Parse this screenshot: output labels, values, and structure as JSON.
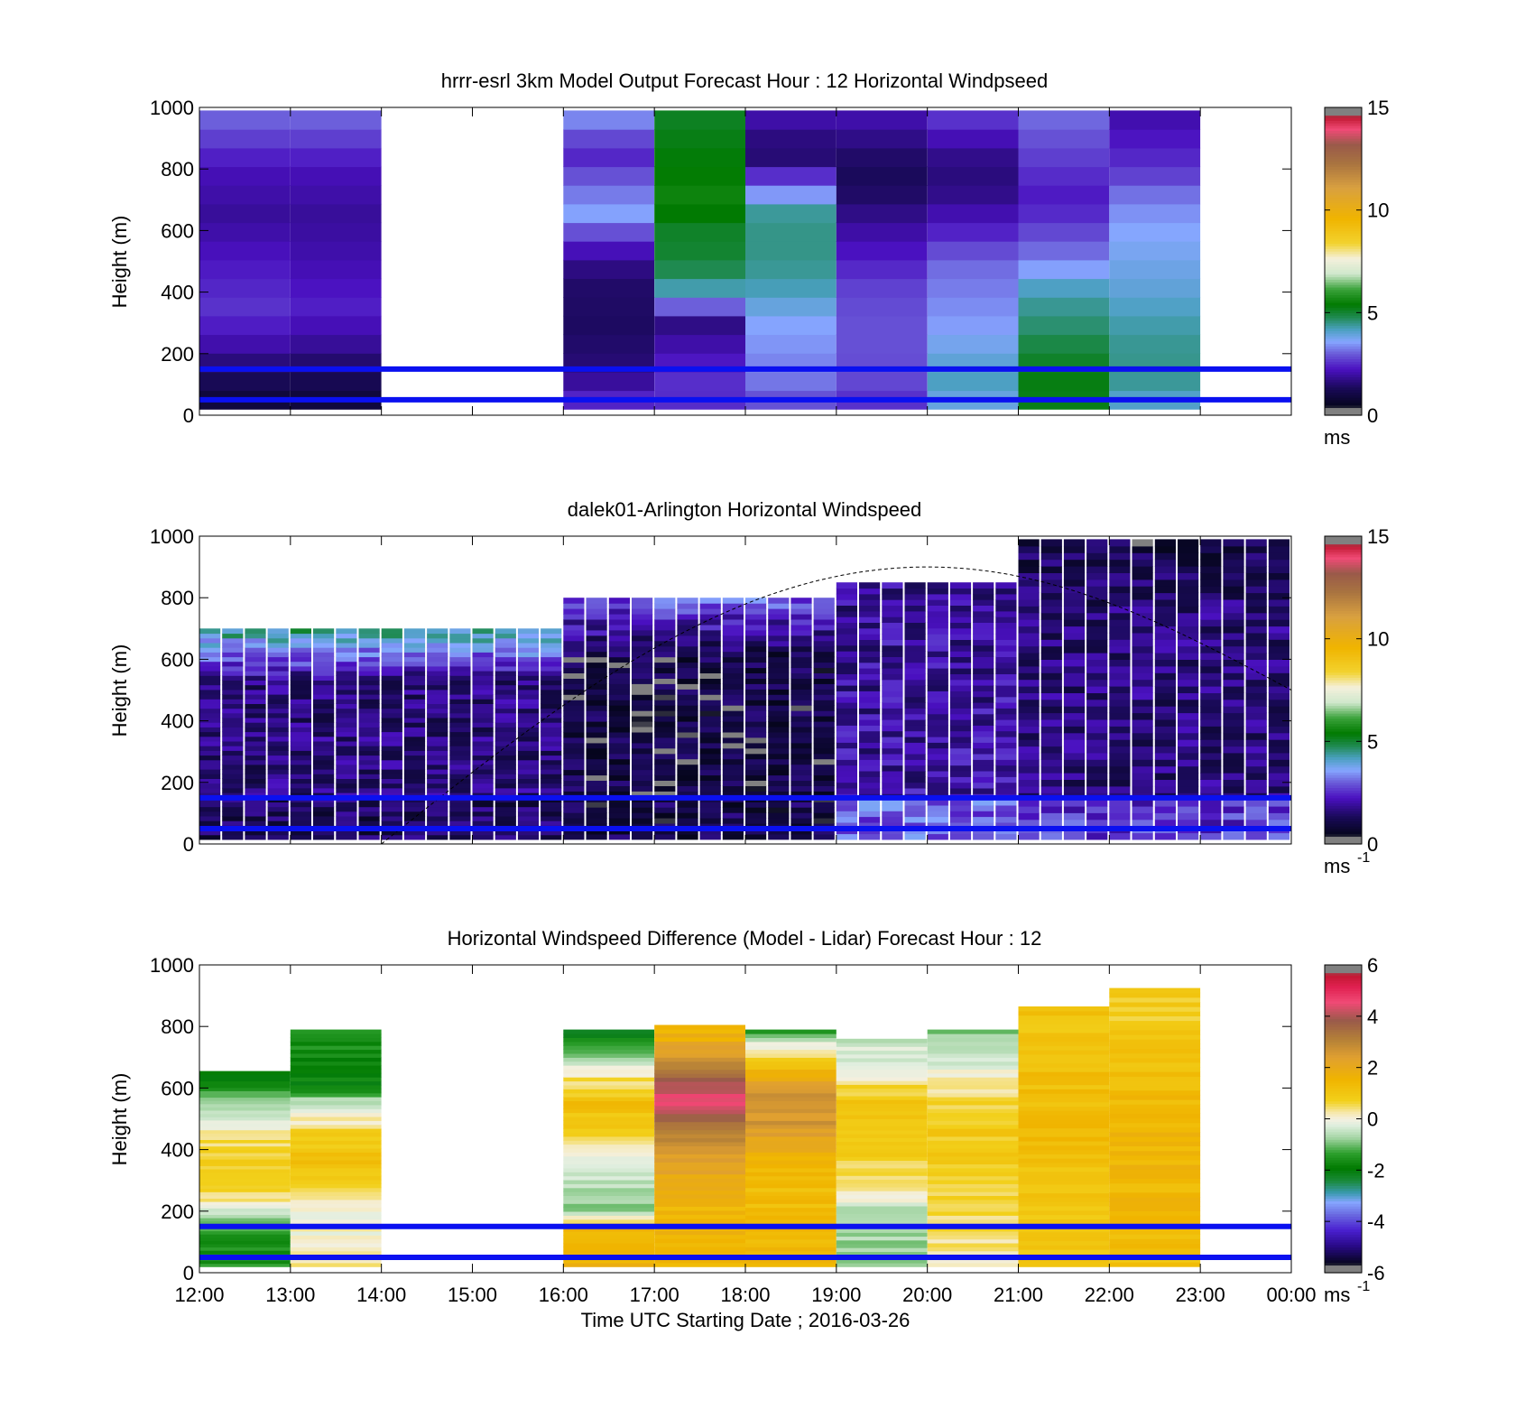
{
  "chart_data": [
    {
      "type": "heatmap",
      "title": "hrrr-esrl 3km Model Output   Forecast Hour : 12 Horizontal Windpseed",
      "ylabel": "Height (m)",
      "ylim": [
        0,
        1000
      ],
      "yticks": [
        0,
        200,
        400,
        600,
        800,
        1000
      ],
      "xlim": [
        "12:00",
        "00:00"
      ],
      "colorbar": {
        "range": [
          0,
          15
        ],
        "ticks": [
          0,
          5,
          10,
          15
        ],
        "unit_label": "ms",
        "unit_superscript": ""
      },
      "reference_lines_m": [
        50,
        150
      ],
      "columns": [
        {
          "start": "12:00",
          "end": "13:00",
          "top": 990,
          "profile": [
            [
              30,
              0.8
            ],
            [
              80,
              1.1
            ],
            [
              150,
              1.5
            ],
            [
              250,
              2.2
            ],
            [
              350,
              2.6
            ],
            [
              500,
              2.3
            ],
            [
              650,
              1.9
            ],
            [
              800,
              2.2
            ],
            [
              990,
              3.2
            ]
          ]
        },
        {
          "start": "13:00",
          "end": "14:00",
          "top": 990,
          "profile": [
            [
              30,
              0.8
            ],
            [
              80,
              1.1
            ],
            [
              150,
              1.4
            ],
            [
              250,
              2.0
            ],
            [
              350,
              2.4
            ],
            [
              500,
              2.1
            ],
            [
              650,
              1.9
            ],
            [
              800,
              2.2
            ],
            [
              990,
              3.2
            ]
          ]
        },
        {
          "start": "16:00",
          "end": "17:00",
          "top": 990,
          "profile": [
            [
              30,
              2.6
            ],
            [
              80,
              2.2
            ],
            [
              150,
              1.6
            ],
            [
              300,
              1.4
            ],
            [
              450,
              1.5
            ],
            [
              550,
              2.3
            ],
            [
              650,
              3.6
            ],
            [
              750,
              3.1
            ],
            [
              850,
              2.4
            ],
            [
              990,
              3.6
            ]
          ]
        },
        {
          "start": "17:00",
          "end": "18:00",
          "top": 990,
          "profile": [
            [
              30,
              2.5
            ],
            [
              100,
              2.6
            ],
            [
              200,
              2.2
            ],
            [
              300,
              1.7
            ],
            [
              400,
              4.2
            ],
            [
              500,
              5.0
            ],
            [
              600,
              5.1
            ],
            [
              700,
              5.6
            ],
            [
              800,
              5.4
            ],
            [
              990,
              5.1
            ]
          ]
        },
        {
          "start": "18:00",
          "end": "19:00",
          "top": 990,
          "profile": [
            [
              30,
              2.8
            ],
            [
              100,
              3.2
            ],
            [
              200,
              3.4
            ],
            [
              300,
              3.6
            ],
            [
              400,
              4.2
            ],
            [
              500,
              4.5
            ],
            [
              650,
              4.5
            ],
            [
              750,
              3.0
            ],
            [
              850,
              1.4
            ],
            [
              990,
              2.2
            ]
          ]
        },
        {
          "start": "19:00",
          "end": "20:00",
          "top": 990,
          "profile": [
            [
              30,
              2.5
            ],
            [
              100,
              2.8
            ],
            [
              200,
              2.9
            ],
            [
              300,
              2.9
            ],
            [
              400,
              2.8
            ],
            [
              500,
              2.4
            ],
            [
              600,
              2.0
            ],
            [
              750,
              1.3
            ],
            [
              850,
              1.5
            ],
            [
              990,
              2.2
            ]
          ]
        },
        {
          "start": "20:00",
          "end": "21:00",
          "top": 990,
          "profile": [
            [
              30,
              3.8
            ],
            [
              100,
              4.2
            ],
            [
              200,
              3.9
            ],
            [
              300,
              3.5
            ],
            [
              400,
              3.3
            ],
            [
              500,
              3.1
            ],
            [
              600,
              2.4
            ],
            [
              750,
              1.6
            ],
            [
              850,
              1.8
            ],
            [
              990,
              2.8
            ]
          ]
        },
        {
          "start": "21:00",
          "end": "22:00",
          "top": 990,
          "profile": [
            [
              30,
              5.2
            ],
            [
              100,
              5.3
            ],
            [
              200,
              5.0
            ],
            [
              300,
              4.6
            ],
            [
              400,
              4.3
            ],
            [
              500,
              3.3
            ],
            [
              600,
              2.8
            ],
            [
              700,
              2.3
            ],
            [
              800,
              2.6
            ],
            [
              990,
              3.2
            ]
          ]
        },
        {
          "start": "22:00",
          "end": "23:00",
          "top": 990,
          "profile": [
            [
              30,
              4.0
            ],
            [
              100,
              4.4
            ],
            [
              200,
              4.5
            ],
            [
              300,
              4.3
            ],
            [
              400,
              4.0
            ],
            [
              500,
              3.8
            ],
            [
              600,
              3.6
            ],
            [
              700,
              3.3
            ],
            [
              800,
              2.6
            ],
            [
              990,
              2.0
            ]
          ]
        }
      ]
    },
    {
      "type": "heatmap",
      "title": "dalek01-Arlington  Horizontal Windspeed",
      "ylabel": "Height (m)",
      "ylim": [
        0,
        1000
      ],
      "yticks": [
        0,
        200,
        400,
        600,
        800,
        1000
      ],
      "xlim": [
        "12:00",
        "00:00"
      ],
      "colorbar": {
        "range": [
          0,
          15
        ],
        "ticks": [
          0,
          5,
          10,
          15
        ],
        "unit_label": "ms",
        "unit_superscript": "-1"
      },
      "reference_lines_m": [
        50,
        150
      ],
      "dashed_curve": {
        "start": [
          "14:00",
          0
        ],
        "peak": [
          "20:00",
          900
        ],
        "end": [
          "00:00",
          500
        ]
      },
      "time_step_minutes": 15,
      "profile_regime": [
        {
          "from": "12:00",
          "to": "16:00",
          "low_m_s": 1.3,
          "mid_m_s": 1.6,
          "top_m_s": 4.5,
          "top_height_m": 700
        },
        {
          "from": "16:00",
          "to": "19:00",
          "low_m_s": 1.1,
          "mid_m_s": 1.0,
          "top_m_s": 3.0,
          "top_height_m": 800
        },
        {
          "from": "19:00",
          "to": "21:00",
          "low_m_s": 3.0,
          "mid_m_s": 2.0,
          "top_m_s": 1.8,
          "top_height_m": 850
        },
        {
          "from": "21:00",
          "to": "00:00",
          "low_m_s": 2.6,
          "mid_m_s": 1.6,
          "top_m_s": 1.0,
          "top_height_m": 990
        }
      ]
    },
    {
      "type": "heatmap",
      "title": "Horizontal Windspeed Difference (Model - Lidar) Forecast Hour : 12",
      "ylabel": "Height (m)",
      "xlabel": "Time UTC  Starting Date ; 2016-03-26",
      "ylim": [
        0,
        1000
      ],
      "yticks": [
        0,
        200,
        400,
        600,
        800,
        1000
      ],
      "xticks": [
        "12:00",
        "13:00",
        "14:00",
        "15:00",
        "16:00",
        "17:00",
        "18:00",
        "19:00",
        "20:00",
        "21:00",
        "22:00",
        "23:00",
        "00:00"
      ],
      "colorbar": {
        "range": [
          -6,
          6
        ],
        "ticks": [
          -6,
          -4,
          -2,
          0,
          2,
          4,
          6
        ],
        "unit_label": "ms",
        "unit_superscript": "-1"
      },
      "reference_lines_m": [
        50,
        150
      ],
      "columns": [
        {
          "start": "12:00",
          "end": "13:00",
          "top": 655,
          "profile": [
            [
              20,
              -1.5
            ],
            [
              100,
              -1.5
            ],
            [
              180,
              -0.8
            ],
            [
              250,
              0.5
            ],
            [
              350,
              0.9
            ],
            [
              450,
              0.3
            ],
            [
              520,
              -0.3
            ],
            [
              600,
              -1.5
            ],
            [
              655,
              -2.2
            ]
          ]
        },
        {
          "start": "13:00",
          "end": "14:00",
          "top": 790,
          "profile": [
            [
              20,
              0.2
            ],
            [
              150,
              0.0
            ],
            [
              250,
              0.3
            ],
            [
              350,
              1.3
            ],
            [
              450,
              0.8
            ],
            [
              550,
              -0.5
            ],
            [
              610,
              -1.8
            ],
            [
              790,
              -1.6
            ]
          ]
        },
        {
          "start": "16:00",
          "end": "17:00",
          "top": 790,
          "profile": [
            [
              20,
              1.6
            ],
            [
              150,
              1.5
            ],
            [
              200,
              -0.9
            ],
            [
              300,
              -0.5
            ],
            [
              380,
              -0.3
            ],
            [
              450,
              0.7
            ],
            [
              550,
              1.2
            ],
            [
              650,
              0.2
            ],
            [
              700,
              -1.0
            ],
            [
              790,
              -2.3
            ]
          ]
        },
        {
          "start": "17:00",
          "end": "18:00",
          "top": 805,
          "profile": [
            [
              20,
              1.6
            ],
            [
              200,
              1.5
            ],
            [
              300,
              1.8
            ],
            [
              400,
              2.7
            ],
            [
              500,
              3.5
            ],
            [
              550,
              4.4
            ],
            [
              600,
              4.3
            ],
            [
              650,
              3.2
            ],
            [
              720,
              2.3
            ],
            [
              805,
              1.3
            ]
          ]
        },
        {
          "start": "18:00",
          "end": "19:00",
          "top": 790,
          "profile": [
            [
              20,
              1.5
            ],
            [
              200,
              1.3
            ],
            [
              300,
              1.3
            ],
            [
              400,
              1.8
            ],
            [
              500,
              2.7
            ],
            [
              600,
              2.6
            ],
            [
              680,
              1.2
            ],
            [
              740,
              -0.2
            ],
            [
              790,
              -1.5
            ]
          ]
        },
        {
          "start": "19:00",
          "end": "20:00",
          "top": 760,
          "profile": [
            [
              20,
              -0.8
            ],
            [
              200,
              -0.6
            ],
            [
              300,
              0.6
            ],
            [
              450,
              0.9
            ],
            [
              550,
              1.0
            ],
            [
              600,
              0.6
            ],
            [
              700,
              -0.4
            ],
            [
              760,
              -0.4
            ]
          ]
        },
        {
          "start": "20:00",
          "end": "21:00",
          "top": 790,
          "profile": [
            [
              20,
              0.2
            ],
            [
              150,
              0.5
            ],
            [
              250,
              0.7
            ],
            [
              350,
              0.9
            ],
            [
              450,
              0.9
            ],
            [
              550,
              0.7
            ],
            [
              650,
              0.1
            ],
            [
              720,
              -0.6
            ],
            [
              790,
              -1.0
            ]
          ]
        },
        {
          "start": "21:00",
          "end": "22:00",
          "top": 865,
          "profile": [
            [
              20,
              1.0
            ],
            [
              200,
              1.0
            ],
            [
              350,
              1.2
            ],
            [
              450,
              1.3
            ],
            [
              550,
              1.3
            ],
            [
              650,
              1.2
            ],
            [
              750,
              1.1
            ],
            [
              820,
              0.8
            ],
            [
              865,
              1.4
            ]
          ]
        },
        {
          "start": "22:00",
          "end": "23:00",
          "top": 925,
          "profile": [
            [
              20,
              1.2
            ],
            [
              200,
              1.4
            ],
            [
              350,
              1.5
            ],
            [
              500,
              1.5
            ],
            [
              650,
              1.3
            ],
            [
              750,
              1.1
            ],
            [
              850,
              0.7
            ],
            [
              925,
              1.0
            ]
          ]
        }
      ]
    }
  ]
}
